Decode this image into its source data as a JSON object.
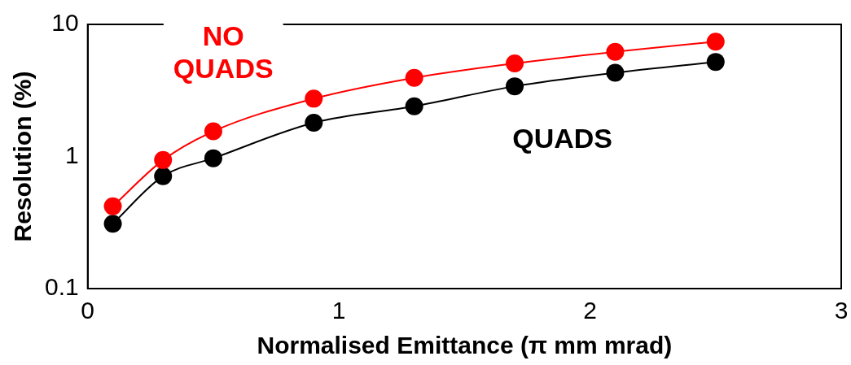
{
  "chart_data": {
    "type": "line",
    "xlabel": "Normalised Emittance (π mm mrad)",
    "ylabel": "Resolution (%)",
    "xlim": [
      0,
      3
    ],
    "xticks": [
      0,
      1,
      2,
      3
    ],
    "ylim": [
      0.1,
      10
    ],
    "yticks": [
      0.1,
      1,
      10
    ],
    "log": "y",
    "grid": false,
    "legend": false,
    "marker": "circle",
    "line_style": "solid",
    "x": [
      0.1,
      0.3,
      0.5,
      0.9,
      1.3,
      1.7,
      2.1,
      2.5
    ],
    "series": [
      {
        "name": "NO QUADS",
        "color": "#ff0000",
        "values": [
          0.42,
          0.94,
          1.55,
          2.74,
          3.94,
          5.07,
          6.2,
          7.4
        ]
      },
      {
        "name": "QUADS",
        "color": "#000000",
        "values": [
          0.31,
          0.71,
          0.97,
          1.8,
          2.4,
          3.4,
          4.3,
          5.2
        ]
      }
    ]
  }
}
